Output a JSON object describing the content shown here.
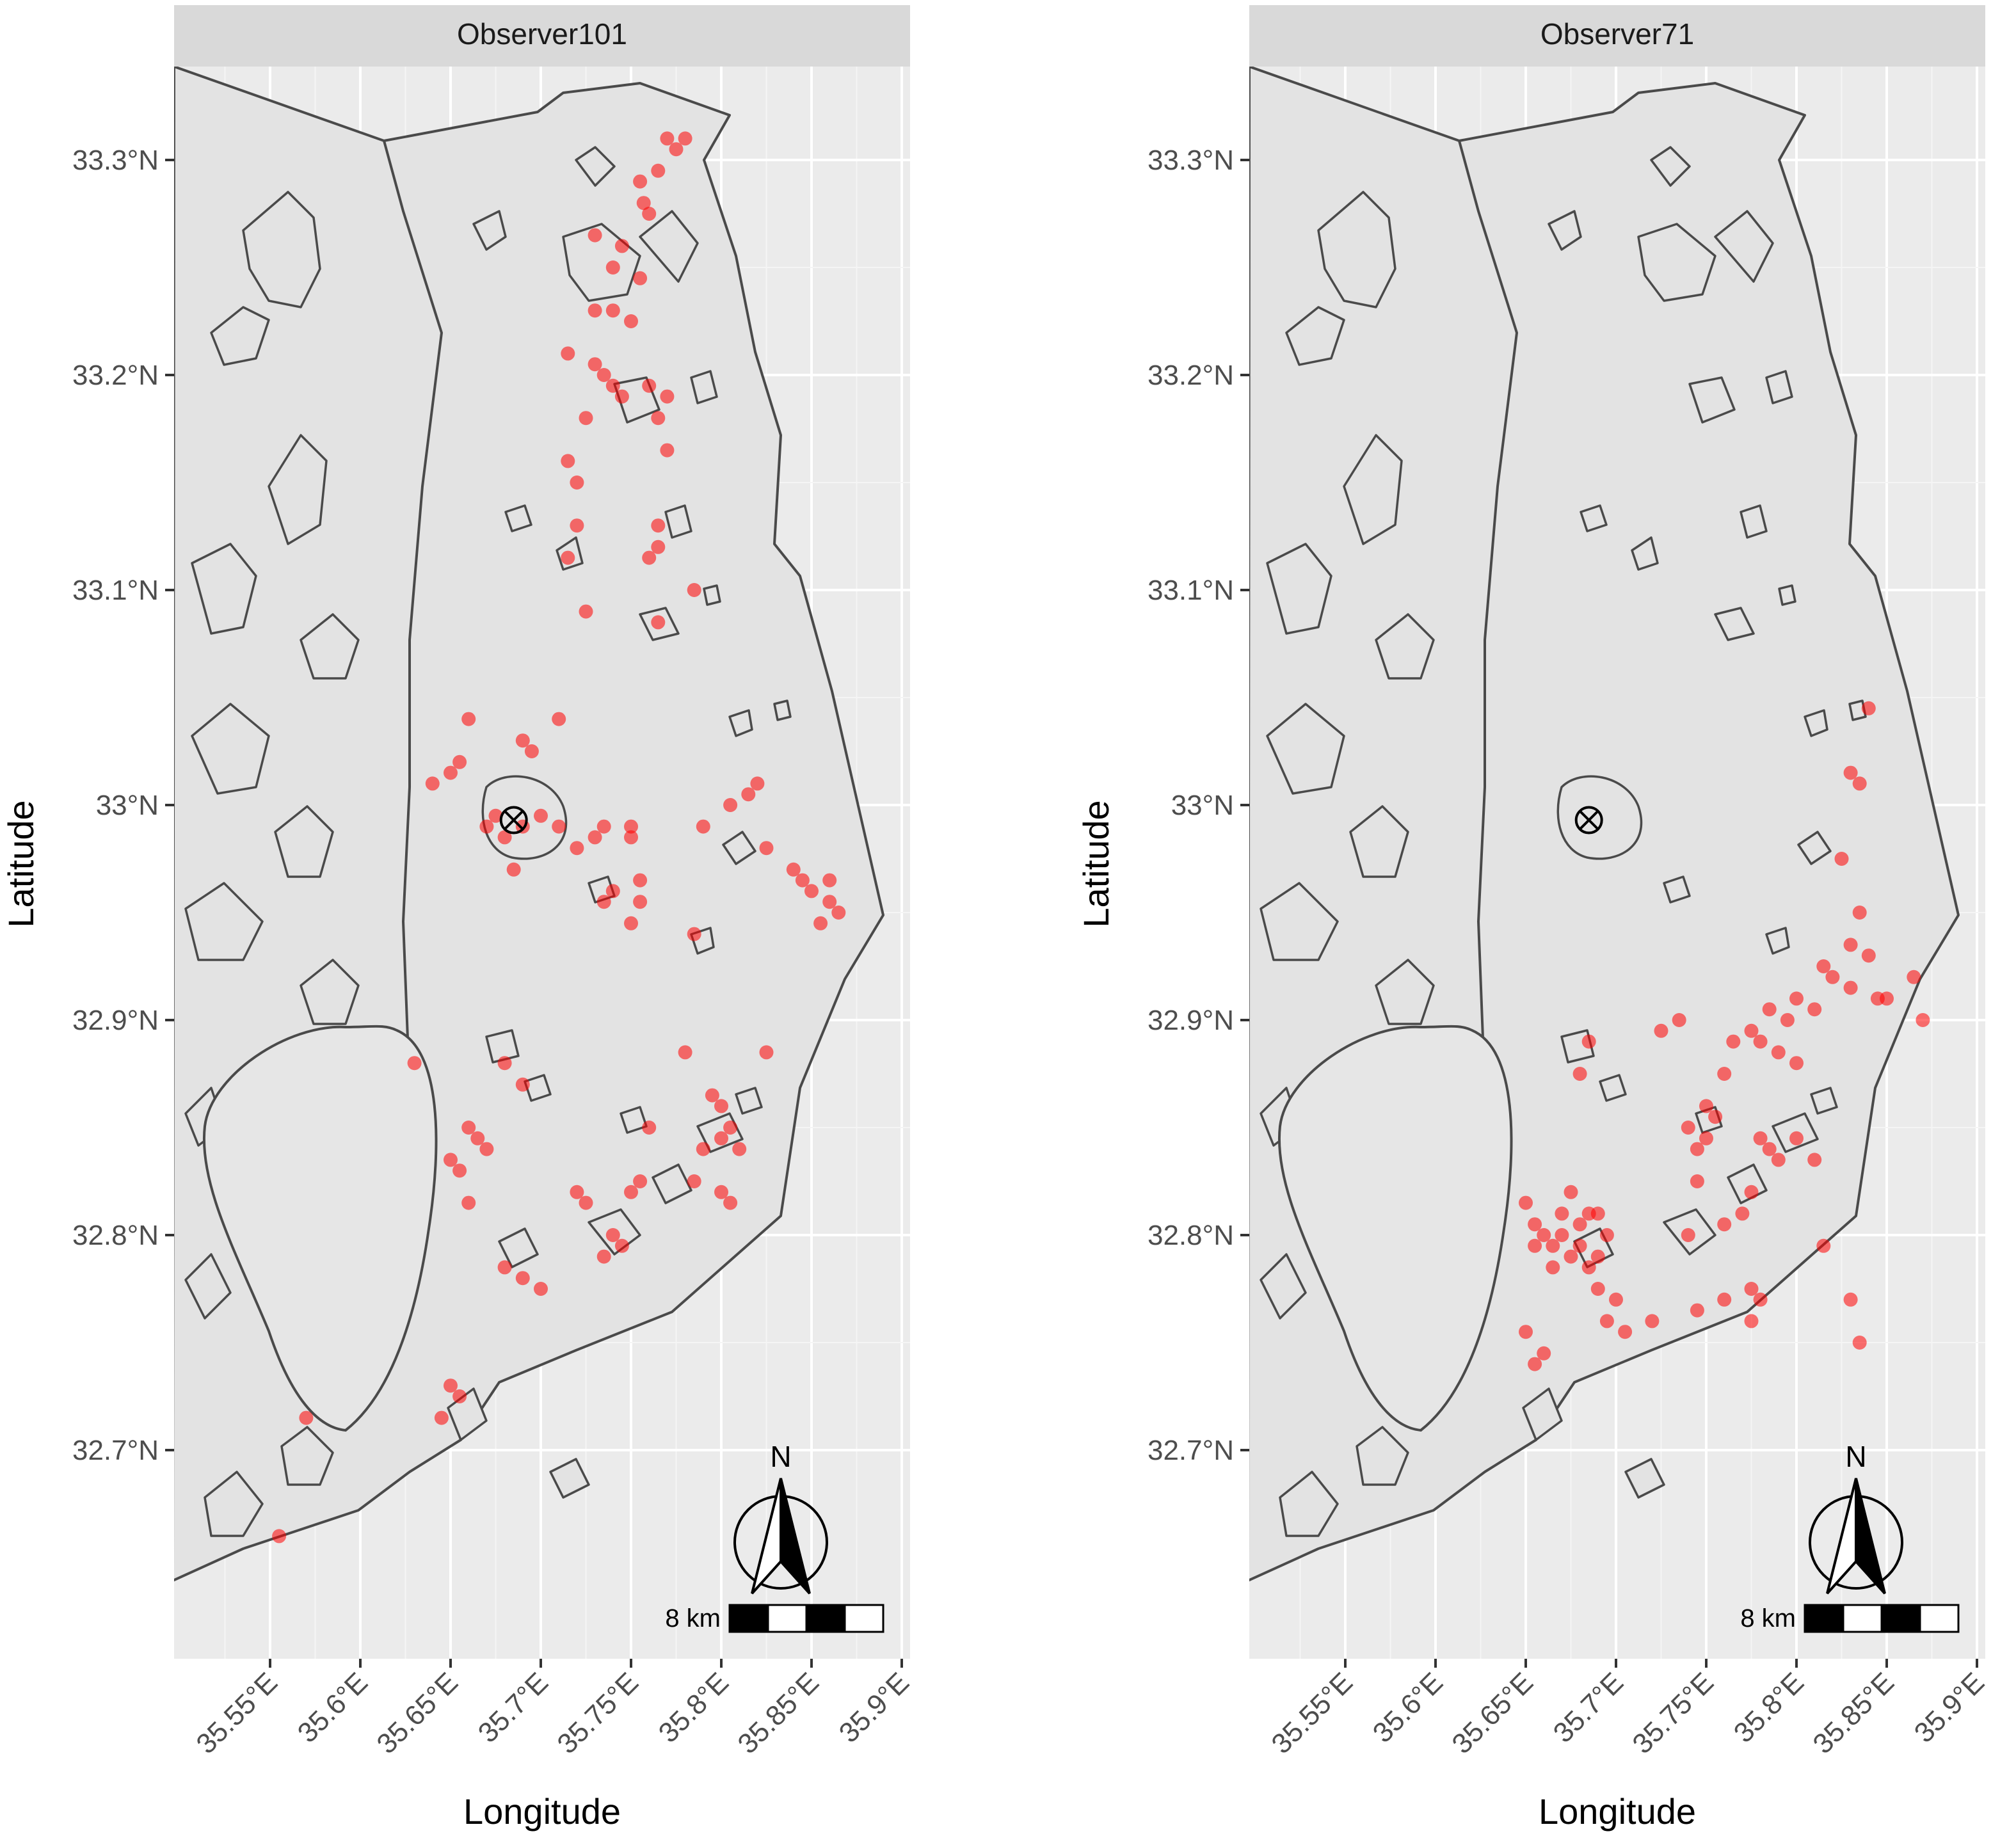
{
  "figure": {
    "x_axis_title": "Longitude",
    "y_axis_title": "Latitude",
    "x_ticks": [
      "35.55°E",
      "35.6°E",
      "35.65°E",
      "35.7°E",
      "35.75°E",
      "35.8°E",
      "35.85°E",
      "35.9°E"
    ],
    "y_ticks": [
      "33.3°N",
      "33.2°N",
      "33.1°N",
      "33°N",
      "32.9°N",
      "32.8°N",
      "32.7°N"
    ],
    "north_label": "N",
    "scale_label": "8 km",
    "colors": {
      "panel_bg": "#ebebeb",
      "strip_bg": "#d9d9d9",
      "region_fill": "#e3e3e3",
      "outline": "#4a4a4a",
      "points": "#ff0000"
    }
  },
  "chart_data": [
    {
      "type": "scatter",
      "facet": "Observer101",
      "xlim": [
        35.5,
        35.9
      ],
      "ylim": [
        32.6,
        33.35
      ],
      "marker": {
        "lon": 35.685,
        "lat": 32.993
      },
      "points": [
        [
          35.77,
          33.31
        ],
        [
          35.78,
          33.31
        ],
        [
          35.775,
          33.305
        ],
        [
          35.765,
          33.295
        ],
        [
          35.755,
          33.29
        ],
        [
          35.757,
          33.28
        ],
        [
          35.76,
          33.275
        ],
        [
          35.73,
          33.265
        ],
        [
          35.745,
          33.26
        ],
        [
          35.74,
          33.25
        ],
        [
          35.755,
          33.245
        ],
        [
          35.73,
          33.23
        ],
        [
          35.74,
          33.23
        ],
        [
          35.75,
          33.225
        ],
        [
          35.715,
          33.21
        ],
        [
          35.73,
          33.205
        ],
        [
          35.735,
          33.2
        ],
        [
          35.74,
          33.195
        ],
        [
          35.745,
          33.19
        ],
        [
          35.76,
          33.195
        ],
        [
          35.77,
          33.19
        ],
        [
          35.765,
          33.18
        ],
        [
          35.725,
          33.18
        ],
        [
          35.77,
          33.165
        ],
        [
          35.715,
          33.16
        ],
        [
          35.72,
          33.15
        ],
        [
          35.72,
          33.13
        ],
        [
          35.765,
          33.13
        ],
        [
          35.765,
          33.12
        ],
        [
          35.76,
          33.115
        ],
        [
          35.715,
          33.115
        ],
        [
          35.725,
          33.09
        ],
        [
          35.765,
          33.085
        ],
        [
          35.785,
          33.1
        ],
        [
          35.66,
          33.04
        ],
        [
          35.71,
          33.04
        ],
        [
          35.69,
          33.03
        ],
        [
          35.695,
          33.025
        ],
        [
          35.655,
          33.02
        ],
        [
          35.65,
          33.015
        ],
        [
          35.64,
          33.01
        ],
        [
          35.675,
          32.995
        ],
        [
          35.67,
          32.99
        ],
        [
          35.68,
          32.985
        ],
        [
          35.69,
          32.99
        ],
        [
          35.7,
          32.995
        ],
        [
          35.71,
          32.99
        ],
        [
          35.685,
          32.97
        ],
        [
          35.72,
          32.98
        ],
        [
          35.73,
          32.985
        ],
        [
          35.735,
          32.99
        ],
        [
          35.75,
          32.99
        ],
        [
          35.75,
          32.985
        ],
        [
          35.755,
          32.965
        ],
        [
          35.74,
          32.96
        ],
        [
          35.755,
          32.955
        ],
        [
          35.735,
          32.955
        ],
        [
          35.75,
          32.945
        ],
        [
          35.79,
          32.99
        ],
        [
          35.805,
          33.0
        ],
        [
          35.815,
          33.005
        ],
        [
          35.82,
          33.01
        ],
        [
          35.825,
          32.98
        ],
        [
          35.84,
          32.97
        ],
        [
          35.845,
          32.965
        ],
        [
          35.85,
          32.96
        ],
        [
          35.86,
          32.955
        ],
        [
          35.865,
          32.95
        ],
        [
          35.855,
          32.945
        ],
        [
          35.86,
          32.965
        ],
        [
          35.785,
          32.94
        ],
        [
          35.63,
          32.88
        ],
        [
          35.66,
          32.85
        ],
        [
          35.665,
          32.845
        ],
        [
          35.67,
          32.84
        ],
        [
          35.65,
          32.835
        ],
        [
          35.655,
          32.83
        ],
        [
          35.69,
          32.87
        ],
        [
          35.68,
          32.88
        ],
        [
          35.78,
          32.885
        ],
        [
          35.795,
          32.865
        ],
        [
          35.8,
          32.86
        ],
        [
          35.825,
          32.885
        ],
        [
          35.76,
          32.85
        ],
        [
          35.79,
          32.84
        ],
        [
          35.8,
          32.845
        ],
        [
          35.805,
          32.85
        ],
        [
          35.81,
          32.84
        ],
        [
          35.785,
          32.825
        ],
        [
          35.8,
          32.82
        ],
        [
          35.805,
          32.815
        ],
        [
          35.755,
          32.825
        ],
        [
          35.75,
          32.82
        ],
        [
          35.72,
          32.82
        ],
        [
          35.725,
          32.815
        ],
        [
          35.74,
          32.8
        ],
        [
          35.735,
          32.79
        ],
        [
          35.745,
          32.795
        ],
        [
          35.68,
          32.785
        ],
        [
          35.69,
          32.78
        ],
        [
          35.7,
          32.775
        ],
        [
          35.66,
          32.815
        ],
        [
          35.65,
          32.73
        ],
        [
          35.655,
          32.725
        ],
        [
          35.645,
          32.715
        ],
        [
          35.57,
          32.715
        ],
        [
          35.555,
          32.66
        ]
      ]
    },
    {
      "type": "scatter",
      "facet": "Observer71",
      "xlim": [
        35.5,
        35.9
      ],
      "ylim": [
        32.6,
        33.35
      ],
      "marker": {
        "lon": 35.685,
        "lat": 32.993
      },
      "points": [
        [
          35.84,
          33.045
        ],
        [
          35.83,
          33.015
        ],
        [
          35.835,
          33.01
        ],
        [
          35.825,
          32.975
        ],
        [
          35.835,
          32.95
        ],
        [
          35.83,
          32.935
        ],
        [
          35.84,
          32.93
        ],
        [
          35.815,
          32.925
        ],
        [
          35.82,
          32.92
        ],
        [
          35.83,
          32.915
        ],
        [
          35.845,
          32.91
        ],
        [
          35.8,
          32.91
        ],
        [
          35.81,
          32.905
        ],
        [
          35.795,
          32.9
        ],
        [
          35.785,
          32.905
        ],
        [
          35.775,
          32.895
        ],
        [
          35.78,
          32.89
        ],
        [
          35.79,
          32.885
        ],
        [
          35.8,
          32.88
        ],
        [
          35.765,
          32.89
        ],
        [
          35.76,
          32.875
        ],
        [
          35.75,
          32.86
        ],
        [
          35.755,
          32.855
        ],
        [
          35.75,
          32.845
        ],
        [
          35.74,
          32.85
        ],
        [
          35.745,
          32.84
        ],
        [
          35.745,
          32.825
        ],
        [
          35.735,
          32.9
        ],
        [
          35.725,
          32.895
        ],
        [
          35.78,
          32.845
        ],
        [
          35.785,
          32.84
        ],
        [
          35.79,
          32.835
        ],
        [
          35.775,
          32.82
        ],
        [
          35.8,
          32.845
        ],
        [
          35.81,
          32.835
        ],
        [
          35.77,
          32.81
        ],
        [
          35.76,
          32.805
        ],
        [
          35.74,
          32.8
        ],
        [
          35.815,
          32.795
        ],
        [
          35.775,
          32.775
        ],
        [
          35.78,
          32.77
        ],
        [
          35.775,
          32.76
        ],
        [
          35.85,
          32.91
        ],
        [
          35.865,
          32.92
        ],
        [
          35.87,
          32.9
        ],
        [
          35.76,
          32.77
        ],
        [
          35.745,
          32.765
        ],
        [
          35.83,
          32.77
        ],
        [
          35.835,
          32.75
        ],
        [
          35.685,
          32.89
        ],
        [
          35.68,
          32.875
        ],
        [
          35.65,
          32.815
        ],
        [
          35.655,
          32.805
        ],
        [
          35.66,
          32.8
        ],
        [
          35.665,
          32.795
        ],
        [
          35.67,
          32.8
        ],
        [
          35.675,
          32.79
        ],
        [
          35.68,
          32.795
        ],
        [
          35.685,
          32.785
        ],
        [
          35.69,
          32.79
        ],
        [
          35.695,
          32.8
        ],
        [
          35.685,
          32.81
        ],
        [
          35.67,
          32.81
        ],
        [
          35.675,
          32.82
        ],
        [
          35.655,
          32.795
        ],
        [
          35.665,
          32.785
        ],
        [
          35.69,
          32.775
        ],
        [
          35.7,
          32.77
        ],
        [
          35.695,
          32.76
        ],
        [
          35.72,
          32.76
        ],
        [
          35.705,
          32.755
        ],
        [
          35.66,
          32.745
        ],
        [
          35.655,
          32.74
        ],
        [
          35.65,
          32.755
        ],
        [
          35.69,
          32.81
        ],
        [
          35.68,
          32.805
        ]
      ]
    }
  ]
}
